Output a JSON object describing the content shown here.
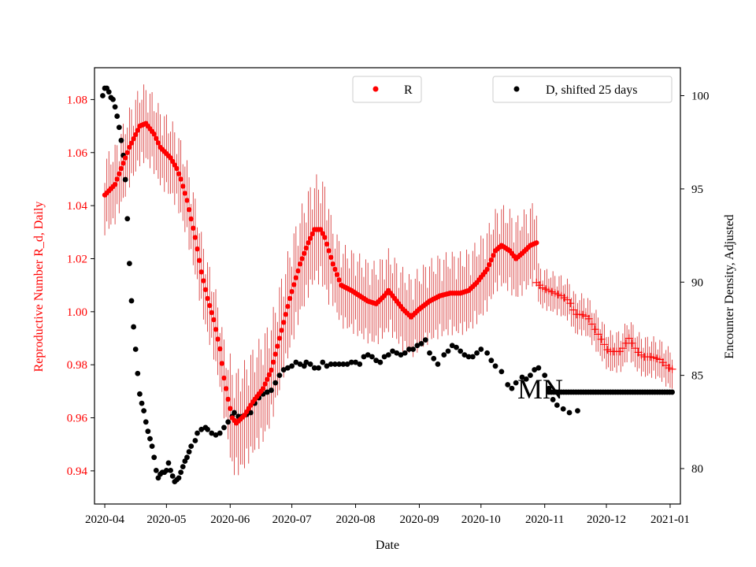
{
  "chart_data": {
    "type": "scatter",
    "xlabel": "Date",
    "ylabel_left": "Reproductive Number R_d, Daily",
    "ylabel_right": "Encounter Density, Adjusted",
    "annotation": "MN",
    "x_ticks": [
      "2020-04",
      "2020-05",
      "2020-06",
      "2020-07",
      "2020-08",
      "2020-09",
      "2020-10",
      "2020-11",
      "2020-12",
      "2021-01"
    ],
    "y_left_ticks": [
      "0.94",
      "0.96",
      "0.98",
      "1.00",
      "1.02",
      "1.04",
      "1.06",
      "1.08"
    ],
    "y_right_ticks": [
      "80",
      "85",
      "90",
      "95",
      "100"
    ],
    "xlim_days": [
      -5,
      280
    ],
    "ylim_left": [
      0.9275,
      1.092
    ],
    "ylim_right": [
      78.1,
      101.5
    ],
    "colors": {
      "R": "#ff0000",
      "D": "#000000"
    },
    "legend": {
      "R": "R",
      "D": "D, shifted 25 days"
    },
    "R_anchors": [
      [
        0,
        1.044
      ],
      [
        5,
        1.048
      ],
      [
        12,
        1.062
      ],
      [
        17,
        1.07
      ],
      [
        20,
        1.071
      ],
      [
        24,
        1.067
      ],
      [
        27,
        1.062
      ],
      [
        32,
        1.058
      ],
      [
        35,
        1.054
      ],
      [
        37,
        1.05
      ],
      [
        40,
        1.042
      ],
      [
        44,
        1.028
      ],
      [
        47,
        1.015
      ],
      [
        50,
        1.005
      ],
      [
        53,
        0.997
      ],
      [
        56,
        0.986
      ],
      [
        58,
        0.975
      ],
      [
        60,
        0.967
      ],
      [
        62,
        0.96
      ],
      [
        64,
        0.958
      ],
      [
        68,
        0.961
      ],
      [
        72,
        0.966
      ],
      [
        77,
        0.971
      ],
      [
        81,
        0.978
      ],
      [
        85,
        0.99
      ],
      [
        90,
        1.005
      ],
      [
        95,
        1.018
      ],
      [
        99,
        1.026
      ],
      [
        102,
        1.031
      ],
      [
        105,
        1.031
      ],
      [
        107,
        1.028
      ],
      [
        111,
        1.018
      ],
      [
        115,
        1.01
      ],
      [
        120,
        1.008
      ],
      [
        124,
        1.006
      ],
      [
        128,
        1.004
      ],
      [
        132,
        1.003
      ],
      [
        136,
        1.006
      ],
      [
        138,
        1.008
      ],
      [
        141,
        1.005
      ],
      [
        145,
        1.001
      ],
      [
        149,
        0.998
      ],
      [
        153,
        1.001
      ],
      [
        158,
        1.004
      ],
      [
        163,
        1.006
      ],
      [
        168,
        1.007
      ],
      [
        173,
        1.007
      ],
      [
        177,
        1.008
      ],
      [
        181,
        1.011
      ],
      [
        186,
        1.016
      ],
      [
        190,
        1.023
      ],
      [
        193,
        1.025
      ],
      [
        197,
        1.023
      ],
      [
        200,
        1.02
      ],
      [
        203,
        1.022
      ],
      [
        207,
        1.025
      ],
      [
        210,
        1.026
      ]
    ],
    "R_forecast": [
      [
        210,
        1.011
      ],
      [
        213,
        1.009
      ],
      [
        216,
        1.008
      ],
      [
        219,
        1.007
      ],
      [
        222,
        1.006
      ],
      [
        226,
        1.004
      ],
      [
        229,
        0.999
      ],
      [
        232,
        0.999
      ],
      [
        235,
        0.998
      ],
      [
        238,
        0.994
      ],
      [
        242,
        0.989
      ],
      [
        245,
        0.985
      ],
      [
        248,
        0.985
      ],
      [
        251,
        0.985
      ],
      [
        255,
        0.99
      ],
      [
        259,
        0.985
      ],
      [
        262,
        0.983
      ],
      [
        266,
        0.983
      ],
      [
        270,
        0.982
      ],
      [
        274,
        0.979
      ],
      [
        277,
        0.978
      ]
    ],
    "R_err_amplitude": 0.016,
    "D_points": [
      [
        -1,
        100.0
      ],
      [
        0,
        100.4
      ],
      [
        1,
        100.4
      ],
      [
        2,
        100.2
      ],
      [
        3,
        99.9
      ],
      [
        4,
        99.8
      ],
      [
        5,
        99.4
      ],
      [
        6,
        98.9
      ],
      [
        7,
        98.3
      ],
      [
        8,
        97.6
      ],
      [
        9,
        96.8
      ],
      [
        10,
        95.5
      ],
      [
        11,
        93.4
      ],
      [
        12,
        91.0
      ],
      [
        13,
        89.0
      ],
      [
        14,
        87.6
      ],
      [
        15,
        86.4
      ],
      [
        16,
        85.1
      ],
      [
        17,
        84.0
      ],
      [
        18,
        83.5
      ],
      [
        19,
        83.1
      ],
      [
        20,
        82.5
      ],
      [
        21,
        82.0
      ],
      [
        22,
        81.6
      ],
      [
        23,
        81.2
      ],
      [
        24,
        80.6
      ],
      [
        25,
        79.9
      ],
      [
        26,
        79.5
      ],
      [
        27,
        79.7
      ],
      [
        28,
        79.8
      ],
      [
        29,
        79.8
      ],
      [
        30,
        79.9
      ],
      [
        31,
        80.3
      ],
      [
        32,
        79.9
      ],
      [
        33,
        79.6
      ],
      [
        34,
        79.3
      ],
      [
        35,
        79.4
      ],
      [
        36,
        79.5
      ],
      [
        37,
        79.8
      ],
      [
        38,
        80.1
      ],
      [
        39,
        80.4
      ],
      [
        40,
        80.6
      ],
      [
        41,
        80.9
      ],
      [
        42,
        81.2
      ],
      [
        44,
        81.5
      ],
      [
        45,
        81.9
      ],
      [
        47,
        82.1
      ],
      [
        49,
        82.2
      ],
      [
        50,
        82.1
      ],
      [
        52,
        81.9
      ],
      [
        54,
        81.8
      ],
      [
        56,
        81.9
      ],
      [
        58,
        82.2
      ],
      [
        60,
        82.5
      ],
      [
        62,
        82.8
      ],
      [
        63,
        83.0
      ],
      [
        65,
        82.8
      ],
      [
        67,
        82.8
      ],
      [
        69,
        82.9
      ],
      [
        71,
        83.0
      ],
      [
        73,
        83.5
      ],
      [
        75,
        83.8
      ],
      [
        77,
        84.0
      ],
      [
        79,
        84.1
      ],
      [
        81,
        84.2
      ],
      [
        83,
        84.6
      ],
      [
        85,
        85.0
      ],
      [
        87,
        85.3
      ],
      [
        89,
        85.4
      ],
      [
        91,
        85.5
      ],
      [
        93,
        85.7
      ],
      [
        95,
        85.6
      ],
      [
        97,
        85.5
      ],
      [
        98,
        85.7
      ],
      [
        100,
        85.6
      ],
      [
        102,
        85.4
      ],
      [
        104,
        85.4
      ],
      [
        106,
        85.7
      ],
      [
        108,
        85.5
      ],
      [
        110,
        85.6
      ],
      [
        112,
        85.6
      ],
      [
        114,
        85.6
      ],
      [
        116,
        85.6
      ],
      [
        118,
        85.6
      ],
      [
        120,
        85.7
      ],
      [
        122,
        85.7
      ],
      [
        124,
        85.6
      ],
      [
        126,
        86.0
      ],
      [
        128,
        86.1
      ],
      [
        130,
        86.0
      ],
      [
        132,
        85.8
      ],
      [
        134,
        85.7
      ],
      [
        136,
        86.0
      ],
      [
        138,
        86.1
      ],
      [
        140,
        86.3
      ],
      [
        142,
        86.2
      ],
      [
        144,
        86.1
      ],
      [
        146,
        86.2
      ],
      [
        148,
        86.4
      ],
      [
        150,
        86.4
      ],
      [
        152,
        86.6
      ],
      [
        154,
        86.7
      ],
      [
        156,
        86.9
      ],
      [
        158,
        86.2
      ],
      [
        160,
        85.9
      ],
      [
        162,
        85.6
      ],
      [
        165,
        86.1
      ],
      [
        167,
        86.3
      ],
      [
        169,
        86.6
      ],
      [
        171,
        86.5
      ],
      [
        173,
        86.3
      ],
      [
        175,
        86.1
      ],
      [
        177,
        86.0
      ],
      [
        179,
        86.0
      ],
      [
        181,
        86.2
      ],
      [
        183,
        86.4
      ],
      [
        186,
        86.2
      ],
      [
        188,
        85.8
      ],
      [
        190,
        85.5
      ],
      [
        193,
        85.2
      ],
      [
        196,
        84.5
      ],
      [
        198,
        84.3
      ],
      [
        200,
        84.6
      ],
      [
        203,
        84.9
      ],
      [
        205,
        84.8
      ],
      [
        207,
        85.0
      ],
      [
        209,
        85.3
      ],
      [
        211,
        85.4
      ],
      [
        214,
        85.0
      ],
      [
        216,
        84.3
      ],
      [
        218,
        83.7
      ],
      [
        220,
        83.4
      ],
      [
        223,
        83.2
      ],
      [
        226,
        83.0
      ],
      [
        230,
        83.1
      ]
    ],
    "D_flat_value": 84.1,
    "D_flat_range": [
      216,
      276
    ]
  }
}
